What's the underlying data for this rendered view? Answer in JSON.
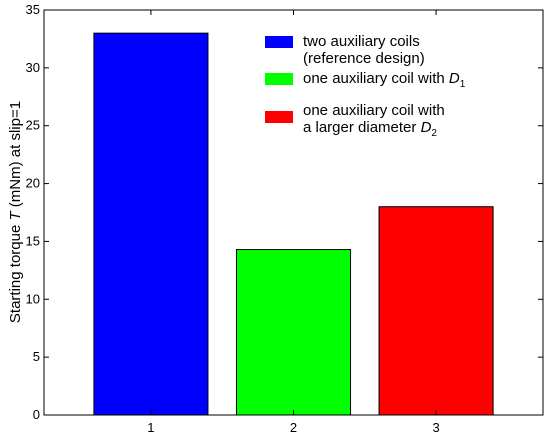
{
  "chart_data": {
    "type": "bar",
    "title": "",
    "xlabel": "",
    "ylabel_prefix": "Starting torque ",
    "ylabel_var": "T",
    "ylabel_suffix": " (mNm) at slip=1",
    "categories": [
      "1",
      "2",
      "3"
    ],
    "values": [
      33,
      14.3,
      18
    ],
    "colors": [
      "#0000ff",
      "#00ff00",
      "#ff0000"
    ],
    "xlim": [
      0.25,
      3.75
    ],
    "ylim": [
      0,
      35
    ],
    "yticks": [
      "0",
      "5",
      "10",
      "15",
      "20",
      "25",
      "30",
      "35"
    ],
    "grid": false,
    "legend_position": "top-right",
    "legend": [
      {
        "color": "#0000ff",
        "line1": "two auxiliary coils",
        "line2": "(reference design)"
      },
      {
        "color": "#00ff00",
        "line1_prefix": "one auxiliary coil with ",
        "line1_var": "D",
        "line1_sub": "1"
      },
      {
        "color": "#ff0000",
        "line1": "one auxiliary coil with",
        "line2_prefix": "a larger diameter ",
        "line2_var": "D",
        "line2_sub": "2"
      }
    ]
  }
}
